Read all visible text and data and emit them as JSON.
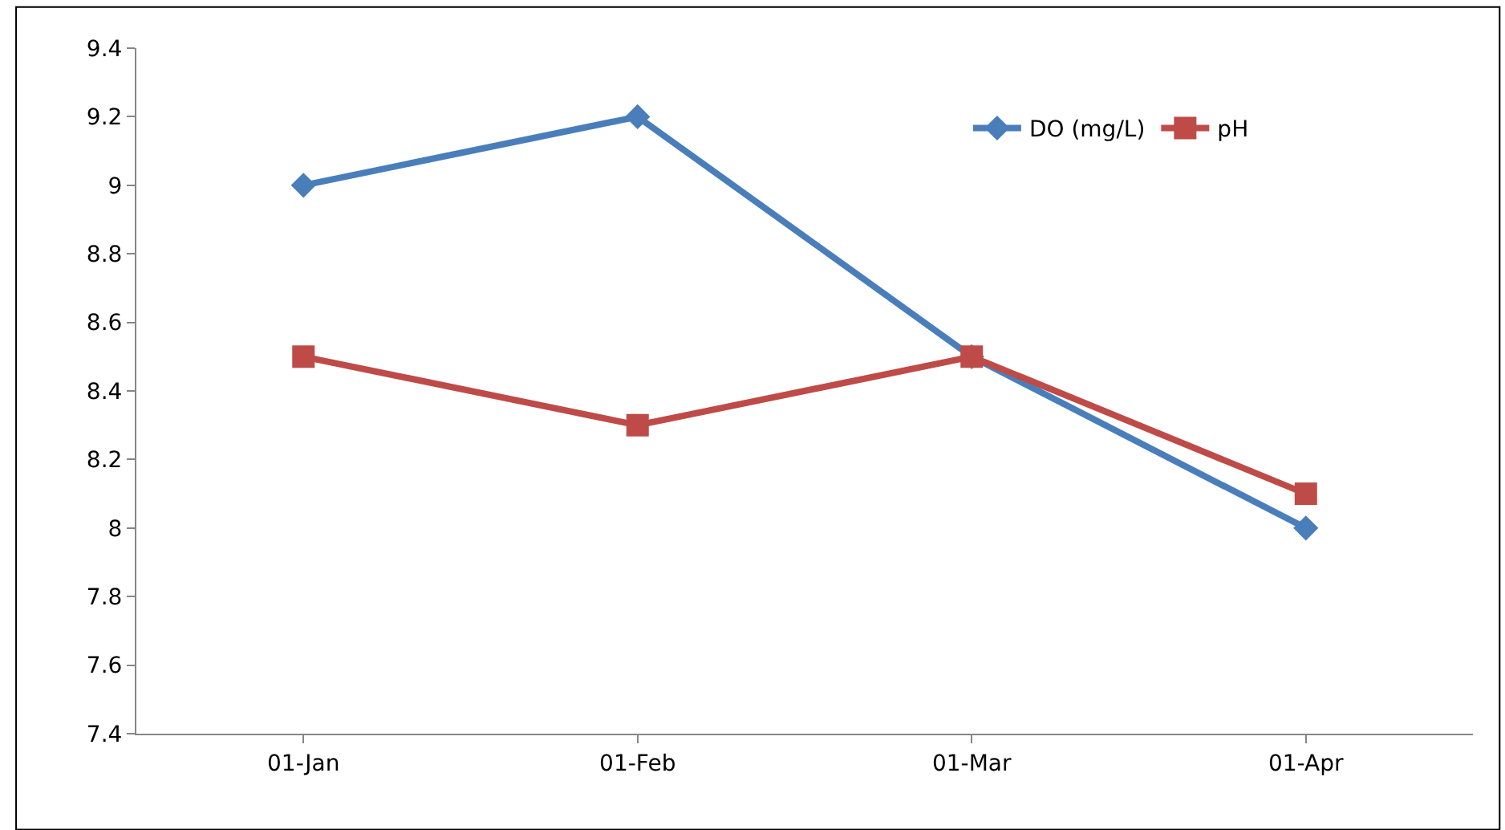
{
  "chart_data": {
    "type": "line",
    "categories": [
      "01-Jan",
      "01-Feb",
      "01-Mar",
      "01-Apr"
    ],
    "series": [
      {
        "name": "DO (mg/L)",
        "color": "#4a7ebb",
        "marker": "diamond",
        "values": [
          9.0,
          9.2,
          8.5,
          8.0
        ]
      },
      {
        "name": "pH",
        "color": "#be4b48",
        "marker": "square",
        "values": [
          8.5,
          8.3,
          8.5,
          8.1
        ]
      }
    ],
    "ylim": [
      7.4,
      9.4
    ],
    "yticks": [
      7.4,
      7.6,
      7.8,
      8,
      8.2,
      8.4,
      8.6,
      8.8,
      9,
      9.2,
      9.4
    ],
    "grid": false,
    "legend": "top right",
    "line_style": "solid"
  }
}
